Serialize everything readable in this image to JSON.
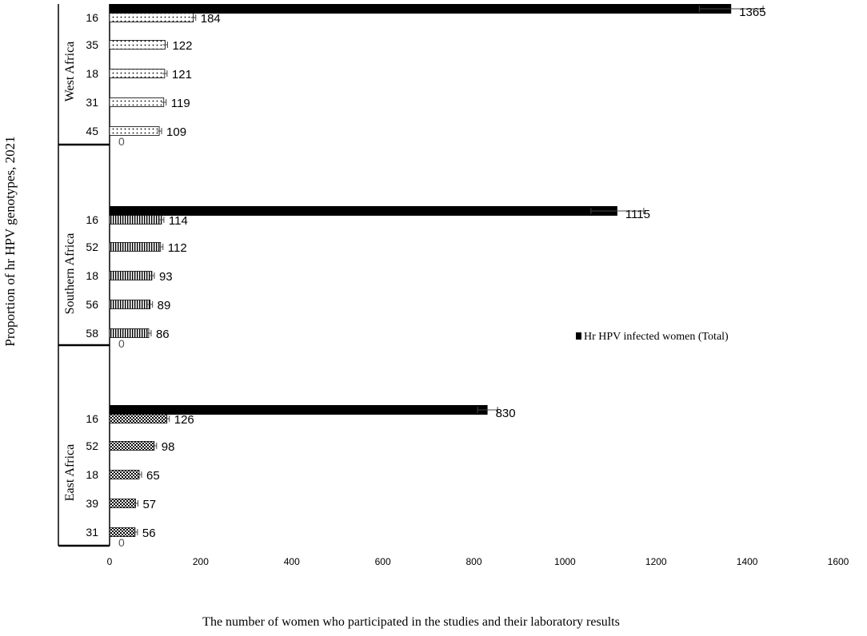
{
  "chart_data": {
    "type": "bar",
    "orientation": "horizontal",
    "ylabel": "Proportion of hr HPV genotypes, 2021",
    "xlabel": "The number of women who participated in the studies and their laboratory results",
    "xlim": [
      0,
      1600
    ],
    "xticks": [
      0,
      200,
      400,
      600,
      800,
      1000,
      1200,
      1400,
      1600
    ],
    "grid": false,
    "legend": {
      "position": "right",
      "entries": [
        "Hr HPV infected women (Total)"
      ]
    },
    "colors": {
      "total": "#000000",
      "genotype_outline": "#000000"
    },
    "groups": [
      {
        "region": "West Africa",
        "pattern": "dots",
        "total": 1365,
        "total_error": 70,
        "categories": [
          "16",
          "35",
          "18",
          "31",
          "45"
        ],
        "values": [
          184,
          122,
          121,
          119,
          109
        ],
        "zero_label": "0"
      },
      {
        "region": "Southern Africa",
        "pattern": "vertical-stripes",
        "total": 1115,
        "total_error": 58,
        "categories": [
          "16",
          "52",
          "18",
          "56",
          "58"
        ],
        "values": [
          114,
          112,
          93,
          89,
          86
        ],
        "zero_label": "0"
      },
      {
        "region": "East Africa",
        "pattern": "checker",
        "total": 830,
        "total_error": 22,
        "categories": [
          "16",
          "52",
          "18",
          "39",
          "31"
        ],
        "values": [
          126,
          98,
          65,
          57,
          56
        ],
        "zero_label": "0"
      }
    ]
  }
}
